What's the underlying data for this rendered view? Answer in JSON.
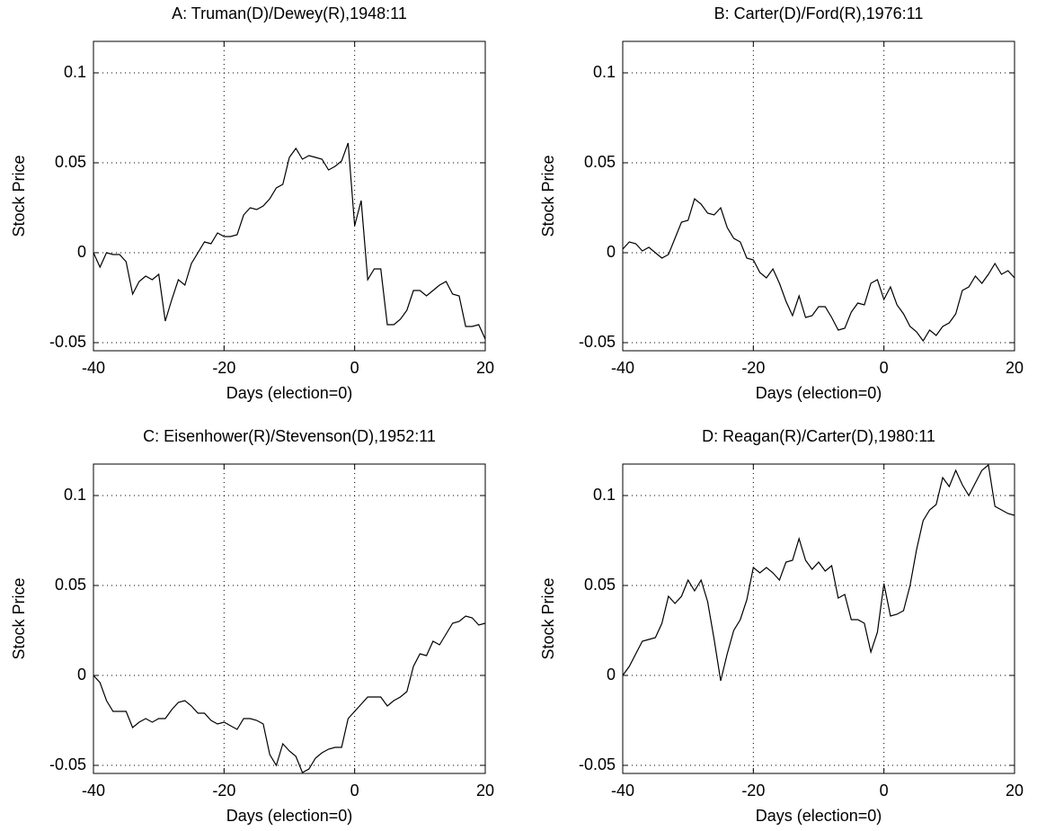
{
  "chart_data": [
    {
      "type": "line",
      "title": "A: Truman(D)/Dewey(R),1948:11",
      "x_label": "Days (election=0)",
      "y_label": "Stock Price",
      "color": "#000000",
      "grid": true,
      "xlim": [
        -40,
        20
      ],
      "xticks": [
        -40,
        -20,
        0,
        20
      ],
      "ylim": [
        -0.0545,
        0.1175
      ],
      "yticks": [
        -0.05,
        0,
        0.05,
        0.1
      ],
      "x": [
        -40,
        -39,
        -38,
        -37,
        -36,
        -35,
        -34,
        -33,
        -32,
        -31,
        -30,
        -29,
        -28,
        -27,
        -26,
        -25,
        -24,
        -23,
        -22,
        -21,
        -20,
        -19,
        -18,
        -17,
        -16,
        -15,
        -14,
        -13,
        -12,
        -11,
        -10,
        -9,
        -8,
        -7,
        -6,
        -5,
        -4,
        -3,
        -2,
        -1,
        0,
        1,
        2,
        3,
        4,
        5,
        6,
        7,
        8,
        9,
        10,
        11,
        12,
        13,
        14,
        15,
        16,
        17,
        18,
        19,
        20
      ],
      "values": [
        0,
        -0.008,
        0,
        -0.001,
        -0.001,
        -0.005,
        -0.023,
        -0.016,
        -0.013,
        -0.015,
        -0.012,
        -0.038,
        -0.026,
        -0.015,
        -0.018,
        -0.006,
        0,
        0.006,
        0.005,
        0.011,
        0.009,
        0.009,
        0.01,
        0.021,
        0.025,
        0.024,
        0.026,
        0.03,
        0.036,
        0.038,
        0.053,
        0.058,
        0.052,
        0.054,
        0.053,
        0.052,
        0.046,
        0.048,
        0.051,
        0.061,
        0.015,
        0.029,
        -0.015,
        -0.009,
        -0.009,
        -0.04,
        -0.04,
        -0.037,
        -0.032,
        -0.021,
        -0.021,
        -0.024,
        -0.021,
        -0.018,
        -0.016,
        -0.023,
        -0.024,
        -0.041,
        -0.041,
        -0.04,
        -0.048
      ]
    },
    {
      "type": "line",
      "title": "B: Carter(D)/Ford(R),1976:11",
      "x_label": "Days (election=0)",
      "y_label": "Stock Price",
      "color": "#000000",
      "grid": true,
      "xlim": [
        -40,
        20
      ],
      "xticks": [
        -40,
        -20,
        0,
        20
      ],
      "ylim": [
        -0.0545,
        0.1175
      ],
      "yticks": [
        -0.05,
        0,
        0.05,
        0.1
      ],
      "x": [
        -40,
        -39,
        -38,
        -37,
        -36,
        -35,
        -34,
        -33,
        -32,
        -31,
        -30,
        -29,
        -28,
        -27,
        -26,
        -25,
        -24,
        -23,
        -22,
        -21,
        -20,
        -19,
        -18,
        -17,
        -16,
        -15,
        -14,
        -13,
        -12,
        -11,
        -10,
        -9,
        -8,
        -7,
        -6,
        -5,
        -4,
        -3,
        -2,
        -1,
        0,
        1,
        2,
        3,
        4,
        5,
        6,
        7,
        8,
        9,
        10,
        11,
        12,
        13,
        14,
        15,
        16,
        17,
        18,
        19,
        20
      ],
      "values": [
        0.002,
        0.006,
        0.005,
        0.001,
        0.003,
        0,
        -0.003,
        -0.001,
        0.008,
        0.017,
        0.018,
        0.03,
        0.027,
        0.022,
        0.021,
        0.025,
        0.014,
        0.008,
        0.006,
        -0.003,
        -0.004,
        -0.011,
        -0.014,
        -0.009,
        -0.017,
        -0.027,
        -0.035,
        -0.024,
        -0.036,
        -0.035,
        -0.03,
        -0.03,
        -0.036,
        -0.043,
        -0.042,
        -0.033,
        -0.028,
        -0.029,
        -0.017,
        -0.015,
        -0.026,
        -0.019,
        -0.029,
        -0.034,
        -0.041,
        -0.044,
        -0.049,
        -0.043,
        -0.046,
        -0.041,
        -0.039,
        -0.034,
        -0.021,
        -0.019,
        -0.013,
        -0.017,
        -0.012,
        -0.006,
        -0.012,
        -0.01,
        -0.014
      ]
    },
    {
      "type": "line",
      "title": "C: Eisenhower(R)/Stevenson(D),1952:11",
      "x_label": "Days (election=0)",
      "y_label": "Stock Price",
      "color": "#000000",
      "grid": true,
      "xlim": [
        -40,
        20
      ],
      "xticks": [
        -40,
        -20,
        0,
        20
      ],
      "ylim": [
        -0.0545,
        0.1175
      ],
      "yticks": [
        -0.05,
        0,
        0.05,
        0.1
      ],
      "x": [
        -40,
        -39,
        -38,
        -37,
        -36,
        -35,
        -34,
        -33,
        -32,
        -31,
        -30,
        -29,
        -28,
        -27,
        -26,
        -25,
        -24,
        -23,
        -22,
        -21,
        -20,
        -19,
        -18,
        -17,
        -16,
        -15,
        -14,
        -13,
        -12,
        -11,
        -10,
        -9,
        -8,
        -7,
        -6,
        -5,
        -4,
        -3,
        -2,
        -1,
        0,
        1,
        2,
        3,
        4,
        5,
        6,
        7,
        8,
        9,
        10,
        11,
        12,
        13,
        14,
        15,
        16,
        17,
        18,
        19,
        20
      ],
      "values": [
        0,
        -0.004,
        -0.014,
        -0.02,
        -0.02,
        -0.02,
        -0.029,
        -0.026,
        -0.024,
        -0.026,
        -0.024,
        -0.024,
        -0.019,
        -0.015,
        -0.014,
        -0.017,
        -0.021,
        -0.021,
        -0.025,
        -0.027,
        -0.026,
        -0.028,
        -0.03,
        -0.024,
        -0.024,
        -0.025,
        -0.027,
        -0.044,
        -0.05,
        -0.038,
        -0.042,
        -0.045,
        -0.054,
        -0.052,
        -0.046,
        -0.043,
        -0.041,
        -0.04,
        -0.04,
        -0.024,
        -0.02,
        -0.016,
        -0.012,
        -0.012,
        -0.012,
        -0.017,
        -0.014,
        -0.012,
        -0.009,
        0.005,
        0.012,
        0.011,
        0.019,
        0.017,
        0.023,
        0.029,
        0.03,
        0.033,
        0.032,
        0.028,
        0.029
      ]
    },
    {
      "type": "line",
      "title": "D: Reagan(R)/Carter(D),1980:11",
      "x_label": "Days (election=0)",
      "y_label": "Stock Price",
      "color": "#000000",
      "grid": true,
      "xlim": [
        -40,
        20
      ],
      "xticks": [
        -40,
        -20,
        0,
        20
      ],
      "ylim": [
        -0.0545,
        0.1175
      ],
      "yticks": [
        -0.05,
        0,
        0.05,
        0.1
      ],
      "x": [
        -40,
        -39,
        -38,
        -37,
        -36,
        -35,
        -34,
        -33,
        -32,
        -31,
        -30,
        -29,
        -28,
        -27,
        -26,
        -25,
        -24,
        -23,
        -22,
        -21,
        -20,
        -19,
        -18,
        -17,
        -16,
        -15,
        -14,
        -13,
        -12,
        -11,
        -10,
        -9,
        -8,
        -7,
        -6,
        -5,
        -4,
        -3,
        -2,
        -1,
        0,
        1,
        2,
        3,
        4,
        5,
        6,
        7,
        8,
        9,
        10,
        11,
        12,
        13,
        14,
        15,
        16,
        17,
        18,
        19,
        20
      ],
      "values": [
        0,
        0.005,
        0.012,
        0.019,
        0.02,
        0.021,
        0.029,
        0.044,
        0.04,
        0.044,
        0.053,
        0.047,
        0.053,
        0.041,
        0.02,
        -0.003,
        0.012,
        0.025,
        0.031,
        0.042,
        0.06,
        0.057,
        0.06,
        0.057,
        0.053,
        0.063,
        0.064,
        0.076,
        0.064,
        0.059,
        0.063,
        0.058,
        0.061,
        0.043,
        0.045,
        0.031,
        0.031,
        0.029,
        0.013,
        0.024,
        0.051,
        0.033,
        0.034,
        0.036,
        0.05,
        0.07,
        0.086,
        0.092,
        0.095,
        0.11,
        0.105,
        0.114,
        0.106,
        0.1,
        0.107,
        0.114,
        0.117,
        0.094,
        0.092,
        0.09,
        0.089
      ]
    }
  ]
}
